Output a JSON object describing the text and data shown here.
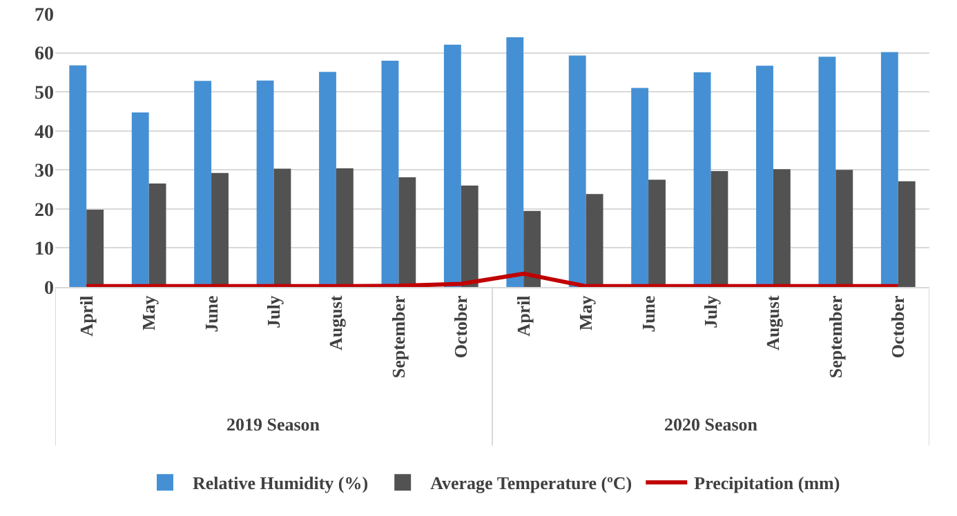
{
  "chart_data": {
    "type": "bar",
    "categories": [
      "April",
      "May",
      "June",
      "July",
      "August",
      "September",
      "October",
      "April",
      "May",
      "June",
      "July",
      "August",
      "September",
      "October"
    ],
    "series": [
      {
        "name": "Relative Humidity (%)",
        "color": "#4590d4",
        "values": [
          56.8,
          44.7,
          52.8,
          52.9,
          55.1,
          58,
          62.1,
          64,
          59.3,
          51,
          55,
          56.7,
          59,
          60.2
        ]
      },
      {
        "name": "Average Temperature (ºC)",
        "color": "#525252",
        "values": [
          19.8,
          26.5,
          29.2,
          30.3,
          30.4,
          28.1,
          26,
          19.5,
          23.8,
          27.5,
          29.7,
          30.2,
          30,
          27.1
        ]
      },
      {
        "name": "Precipitation (mm)",
        "type": "line",
        "color": "#c00000",
        "values": [
          0.2,
          0.2,
          0.2,
          0.2,
          0.2,
          0.3,
          0.8,
          3.4,
          0.2,
          0.2,
          0.2,
          0.2,
          0.2,
          0.2
        ]
      }
    ],
    "annotations": [
      "2019 Season",
      "2020 Season"
    ],
    "ylim": [
      0,
      70
    ],
    "yticks": [
      0,
      10,
      20,
      30,
      40,
      50,
      60,
      70
    ],
    "grid": "y",
    "legend": "bottom",
    "marker": "none",
    "line_style": "solid"
  }
}
